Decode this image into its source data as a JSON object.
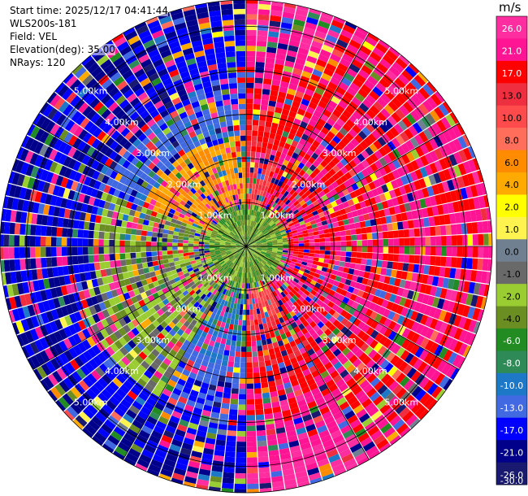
{
  "info": {
    "start_time": "Start time: 2025/12/17 04:41:44",
    "instrument": "WLS200s-181",
    "field": "Field: VEL",
    "elevation": "Elevation(deg): 35.00",
    "nrays": "NRays: 120"
  },
  "colorbar": {
    "unit": "m/s",
    "labels": [
      "26.0",
      "21.0",
      "17.0",
      "13.0",
      "10.0",
      "8.0",
      "6.0",
      "4.0",
      "2.0",
      "1.0",
      "0.0",
      "-1.0",
      "-2.0",
      "-4.0",
      "-6.0",
      "-8.0",
      "-10.0",
      "-13.0",
      "-17.0",
      "-21.0",
      "-26.0",
      "-30.0"
    ],
    "colors": [
      "#ff2ea0",
      "#ff1493",
      "#ff0000",
      "#ef2f3f",
      "#ff4b4b",
      "#ff6e5a",
      "#ff8c00",
      "#ffaa00",
      "#ffff00",
      "#fff44f",
      "#708090",
      "#696969",
      "#9acd32",
      "#6b8e23",
      "#228b22",
      "#2e8b57",
      "#1e78c8",
      "#4169e1",
      "#0000ff",
      "#00008b",
      "#191970"
    ]
  },
  "range_rings": [
    {
      "left": "1.00km",
      "right": "1.00km"
    },
    {
      "left": "2.00km",
      "right": "2.00km"
    },
    {
      "left": "3.00km",
      "right": "3.00km"
    },
    {
      "left": "4.00km",
      "right": "4.00km"
    },
    {
      "left": "5.00km",
      "right": "5.00km"
    }
  ],
  "chart_data": {
    "type": "heatmap",
    "projection": "PPI polar",
    "field": "VEL",
    "units": "m/s",
    "elevation_deg": 35.0,
    "n_rays": 120,
    "max_range_km": 5.6,
    "ring_ranges_km": [
      1,
      2,
      3,
      4,
      5
    ],
    "value_range": [
      -30,
      30
    ],
    "dominant_sectors": [
      {
        "azimuth_deg": [
          290,
          360
        ],
        "range_km": [
          0.5,
          2.5
        ],
        "velocity_ms": 4.0
      },
      {
        "azimuth_deg": [
          20,
          150
        ],
        "range_km": [
          0.5,
          5.6
        ],
        "velocity_ms": 17.0
      },
      {
        "azimuth_deg": [
          210,
          290
        ],
        "range_km": [
          0.3,
          4.0
        ],
        "velocity_ms": -3.0
      },
      {
        "azimuth_deg": [
          250,
          340
        ],
        "range_km": [
          3.5,
          5.6
        ],
        "velocity_ms": -21.0
      },
      {
        "azimuth_deg": [
          0,
          360
        ],
        "range_km": [
          0.0,
          0.9
        ],
        "velocity_ms": -5.0
      }
    ]
  }
}
